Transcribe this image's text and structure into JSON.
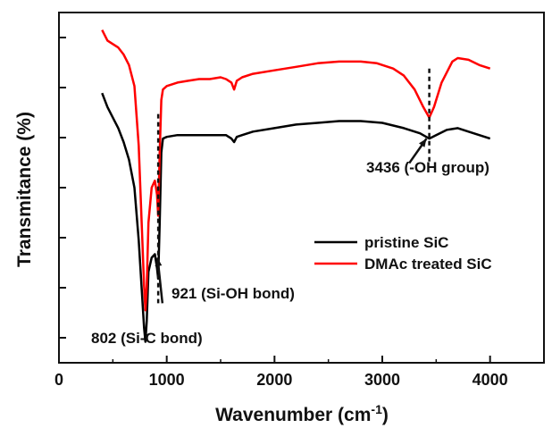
{
  "chart_data": {
    "type": "line",
    "title": "",
    "xlabel": "Wavenumber (cm",
    "xlabel_sup": "-1",
    "xlabel_close": ")",
    "ylabel": "Transmitance (%)",
    "xlim": [
      0,
      4500
    ],
    "ylim": [
      0,
      100
    ],
    "xticks": [
      0,
      1000,
      2000,
      3000,
      4000
    ],
    "xtick_labels": [
      "0",
      "1000",
      "2000",
      "3000",
      "4000"
    ],
    "yticks_count": 7,
    "ytick_labels_shown": false,
    "grid": false,
    "legend_position": "lower-right",
    "series": [
      {
        "name": "pristine SiC",
        "color": "#000000",
        "x": [
          400,
          450,
          500,
          550,
          600,
          650,
          700,
          740,
          770,
          790,
          802,
          815,
          830,
          860,
          890,
          910,
          921,
          935,
          950,
          965,
          1000,
          1100,
          1200,
          1300,
          1400,
          1500,
          1550,
          1600,
          1625,
          1650,
          1700,
          1800,
          2000,
          2200,
          2400,
          2600,
          2800,
          3000,
          3200,
          3350,
          3436,
          3500,
          3600,
          3700,
          3800,
          3900,
          4000
        ],
        "y": [
          77,
          73,
          70,
          67,
          63,
          58,
          50,
          35,
          20,
          10,
          6,
          12,
          26,
          30,
          31,
          27,
          24,
          40,
          60,
          64,
          64.5,
          65,
          65,
          65,
          65,
          65,
          65,
          64,
          63,
          64.5,
          65,
          66,
          67,
          68,
          68.5,
          69,
          69,
          68.5,
          67,
          65.5,
          64,
          65,
          66.5,
          67,
          66,
          65,
          64
        ]
      },
      {
        "name": "DMAc treated SiC",
        "color": "#ff0000",
        "x": [
          400,
          450,
          500,
          550,
          600,
          650,
          700,
          740,
          770,
          790,
          802,
          815,
          830,
          860,
          890,
          910,
          921,
          935,
          950,
          965,
          1000,
          1100,
          1200,
          1300,
          1400,
          1500,
          1550,
          1600,
          1625,
          1650,
          1700,
          1800,
          2000,
          2200,
          2400,
          2600,
          2800,
          2950,
          3100,
          3200,
          3300,
          3380,
          3436,
          3480,
          3550,
          3650,
          3700,
          3800,
          3900,
          4000
        ],
        "y": [
          95,
          92,
          91,
          90,
          88,
          85,
          79,
          62,
          38,
          22,
          15,
          22,
          40,
          50,
          52,
          48,
          42,
          60,
          75,
          78,
          79,
          80,
          80.5,
          81,
          81,
          81.5,
          81,
          80,
          78,
          80.5,
          81.5,
          82.5,
          83.5,
          84.5,
          85.5,
          86,
          86,
          85.5,
          84,
          82,
          78,
          73,
          70,
          73,
          80,
          86,
          87,
          86.5,
          85,
          84
        ]
      }
    ],
    "annotations": [
      {
        "text": "802 (Si-C bond)"
      },
      {
        "text": "921 (Si-OH bond)"
      },
      {
        "text": "3436 (-OH group)"
      }
    ]
  }
}
